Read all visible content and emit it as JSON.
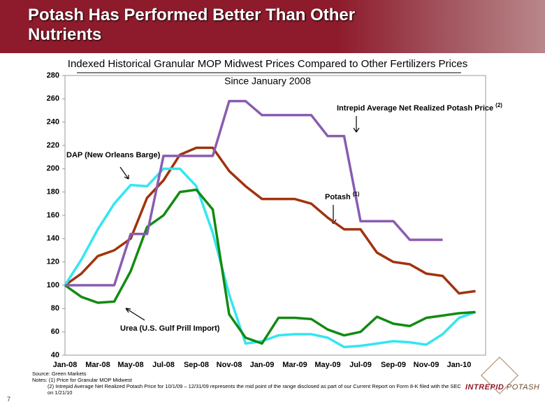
{
  "header": {
    "title": "Potash Has Performed Better Than Other Nutrients"
  },
  "chart_data": {
    "type": "line",
    "title": "Indexed Historical Granular MOP Midwest Prices Compared to Other Fertilizers Prices",
    "subtitle": "Since January 2008",
    "categories": [
      "Jan-08",
      null,
      "Mar-08",
      null,
      "May-08",
      null,
      "Jul-08",
      null,
      "Sep-08",
      null,
      "Nov-08",
      null,
      "Jan-09",
      null,
      "Mar-09",
      null,
      "May-09",
      null,
      "Jul-09",
      null,
      "Sep-09",
      null,
      "Nov-09",
      null,
      "Jan-10",
      null
    ],
    "ylim": [
      40,
      280
    ],
    "yticks": [
      40,
      60,
      80,
      100,
      120,
      140,
      160,
      180,
      200,
      220,
      240,
      260,
      280
    ],
    "grid": false,
    "series": [
      {
        "name": "Potash",
        "note": "(1)",
        "color": "#a0330e",
        "values": [
          100,
          110,
          125,
          130,
          140,
          175,
          190,
          212,
          218,
          218,
          198,
          185,
          174,
          174,
          174,
          170,
          158,
          148,
          148,
          128,
          120,
          118,
          110,
          108,
          93,
          95
        ]
      },
      {
        "name": "DAP (New Orleans Barge)",
        "color": "#33e6f0",
        "values": [
          100,
          122,
          148,
          170,
          186,
          185,
          200,
          200,
          185,
          145,
          92,
          50,
          52,
          57,
          58,
          58,
          55,
          47,
          48,
          50,
          52,
          51,
          49,
          58,
          72,
          77
        ]
      },
      {
        "name": "Urea (U.S. Gulf Prill Import)",
        "color": "#138a13",
        "values": [
          100,
          90,
          85,
          86,
          112,
          150,
          160,
          180,
          182,
          165,
          75,
          55,
          50,
          72,
          72,
          71,
          62,
          57,
          60,
          73,
          67,
          65,
          72,
          74,
          76,
          77
        ]
      },
      {
        "name": "Intrepid  Average Net Realized Potash Price",
        "note": "(2)",
        "color": "#8a5cb0",
        "values": [
          100,
          100,
          100,
          100,
          144,
          144,
          211,
          211,
          211,
          211,
          258,
          258,
          246,
          246,
          246,
          246,
          228,
          228,
          155,
          155,
          155,
          139,
          139,
          139,
          null,
          null
        ]
      }
    ]
  },
  "footer": {
    "source": "Source: Green Markets",
    "notes": [
      "Notes: (1) Price for Granular MOP Midwest",
      "(2) Intrepid Average Net Realized Potash Price for 10/1/09 – 12/31/09 represents the mid point of the range disclosed as part of our Current Report on Form 8-K filed with the SEC on 1/21/10"
    ],
    "page": "7",
    "logo": [
      "INTREPID",
      "POTASH"
    ]
  }
}
